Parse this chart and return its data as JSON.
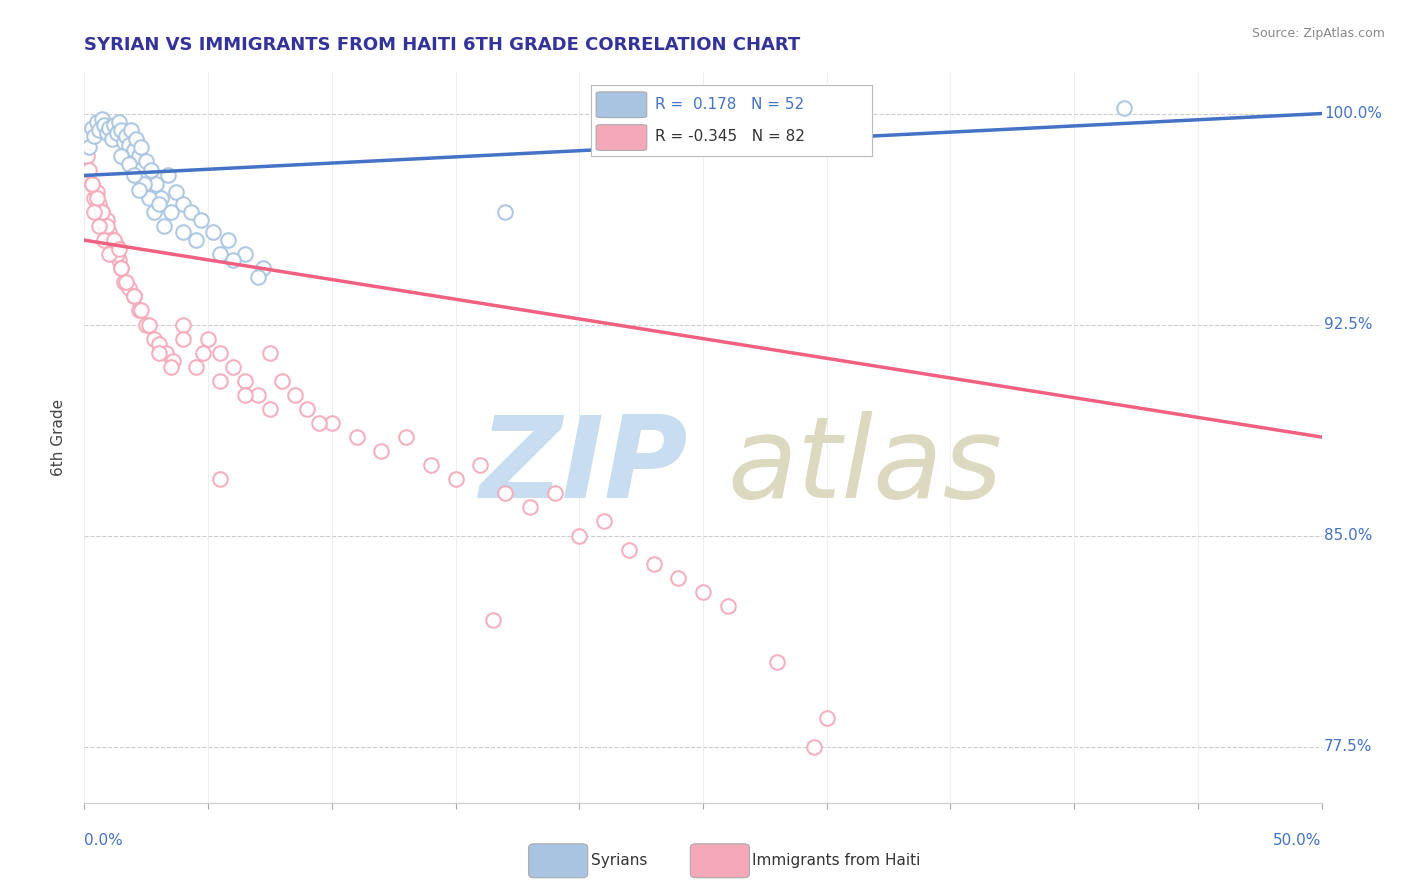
{
  "title": "SYRIAN VS IMMIGRANTS FROM HAITI 6TH GRADE CORRELATION CHART",
  "source_text": "Source: ZipAtlas.com",
  "ylabel": "6th Grade",
  "xlim": [
    0.0,
    50.0
  ],
  "ylim": [
    75.5,
    101.5
  ],
  "yticks": [
    77.5,
    85.0,
    92.5,
    100.0
  ],
  "blue_color": "#a8c4e0",
  "pink_color": "#f4a8b8",
  "blue_line_color": "#4472c4",
  "pink_line_color": "#f06080",
  "blue_dots_x": [
    0.2,
    0.3,
    0.4,
    0.5,
    0.6,
    0.7,
    0.8,
    0.9,
    1.0,
    1.1,
    1.2,
    1.3,
    1.4,
    1.5,
    1.6,
    1.7,
    1.8,
    1.9,
    2.0,
    2.1,
    2.2,
    2.3,
    2.5,
    2.7,
    2.9,
    3.1,
    3.4,
    3.7,
    4.0,
    4.3,
    4.7,
    5.2,
    5.8,
    6.5,
    7.2,
    3.2,
    4.5,
    5.5,
    6.0,
    7.0,
    2.4,
    2.6,
    2.8,
    1.5,
    1.8,
    2.0,
    2.2,
    3.0,
    3.5,
    4.0,
    17.0,
    42.0
  ],
  "blue_dots_y": [
    98.8,
    99.5,
    99.2,
    99.7,
    99.4,
    99.8,
    99.6,
    99.3,
    99.5,
    99.1,
    99.6,
    99.3,
    99.7,
    99.4,
    99.0,
    99.2,
    98.9,
    99.4,
    98.7,
    99.1,
    98.5,
    98.8,
    98.3,
    98.0,
    97.5,
    97.0,
    97.8,
    97.2,
    96.8,
    96.5,
    96.2,
    95.8,
    95.5,
    95.0,
    94.5,
    96.0,
    95.5,
    95.0,
    94.8,
    94.2,
    97.5,
    97.0,
    96.5,
    98.5,
    98.2,
    97.8,
    97.3,
    96.8,
    96.5,
    95.8,
    96.5,
    100.2
  ],
  "pink_dots_x": [
    0.1,
    0.2,
    0.3,
    0.4,
    0.5,
    0.6,
    0.7,
    0.8,
    0.9,
    1.0,
    1.1,
    1.2,
    1.3,
    1.4,
    1.5,
    1.6,
    1.8,
    2.0,
    2.2,
    2.5,
    2.8,
    3.0,
    3.3,
    3.6,
    4.0,
    4.5,
    5.0,
    5.5,
    6.0,
    6.5,
    7.0,
    7.5,
    8.0,
    8.5,
    9.0,
    10.0,
    11.0,
    12.0,
    13.0,
    14.0,
    15.0,
    16.0,
    17.0,
    18.0,
    19.0,
    20.0,
    21.0,
    22.0,
    23.0,
    24.0,
    25.0,
    26.0,
    28.0,
    30.0,
    0.3,
    0.5,
    0.7,
    0.9,
    1.1,
    1.3,
    1.5,
    1.7,
    2.0,
    2.3,
    2.6,
    3.0,
    3.5,
    4.0,
    4.8,
    5.5,
    6.5,
    7.5,
    9.5,
    0.4,
    0.6,
    0.8,
    1.0,
    1.2,
    1.4,
    5.5,
    16.5,
    29.5
  ],
  "pink_dots_y": [
    98.5,
    98.0,
    97.5,
    97.0,
    97.2,
    96.8,
    96.5,
    96.0,
    96.2,
    95.8,
    95.5,
    95.0,
    95.3,
    94.8,
    94.5,
    94.0,
    93.8,
    93.5,
    93.0,
    92.5,
    92.0,
    91.8,
    91.5,
    91.2,
    92.5,
    91.0,
    92.0,
    91.5,
    91.0,
    90.5,
    90.0,
    91.5,
    90.5,
    90.0,
    89.5,
    89.0,
    88.5,
    88.0,
    88.5,
    87.5,
    87.0,
    87.5,
    86.5,
    86.0,
    86.5,
    85.0,
    85.5,
    84.5,
    84.0,
    83.5,
    83.0,
    82.5,
    80.5,
    78.5,
    97.5,
    97.0,
    96.5,
    96.0,
    95.5,
    95.0,
    94.5,
    94.0,
    93.5,
    93.0,
    92.5,
    91.5,
    91.0,
    92.0,
    91.5,
    90.5,
    90.0,
    89.5,
    89.0,
    96.5,
    96.0,
    95.5,
    95.0,
    95.5,
    95.2,
    87.0,
    82.0,
    77.5
  ],
  "blue_trend_x0": 0.0,
  "blue_trend_y0": 97.8,
  "blue_trend_x1": 50.0,
  "blue_trend_y1": 100.0,
  "pink_trend_x0": 0.0,
  "pink_trend_y0": 95.5,
  "pink_trend_x1": 50.0,
  "pink_trend_y1": 88.5
}
